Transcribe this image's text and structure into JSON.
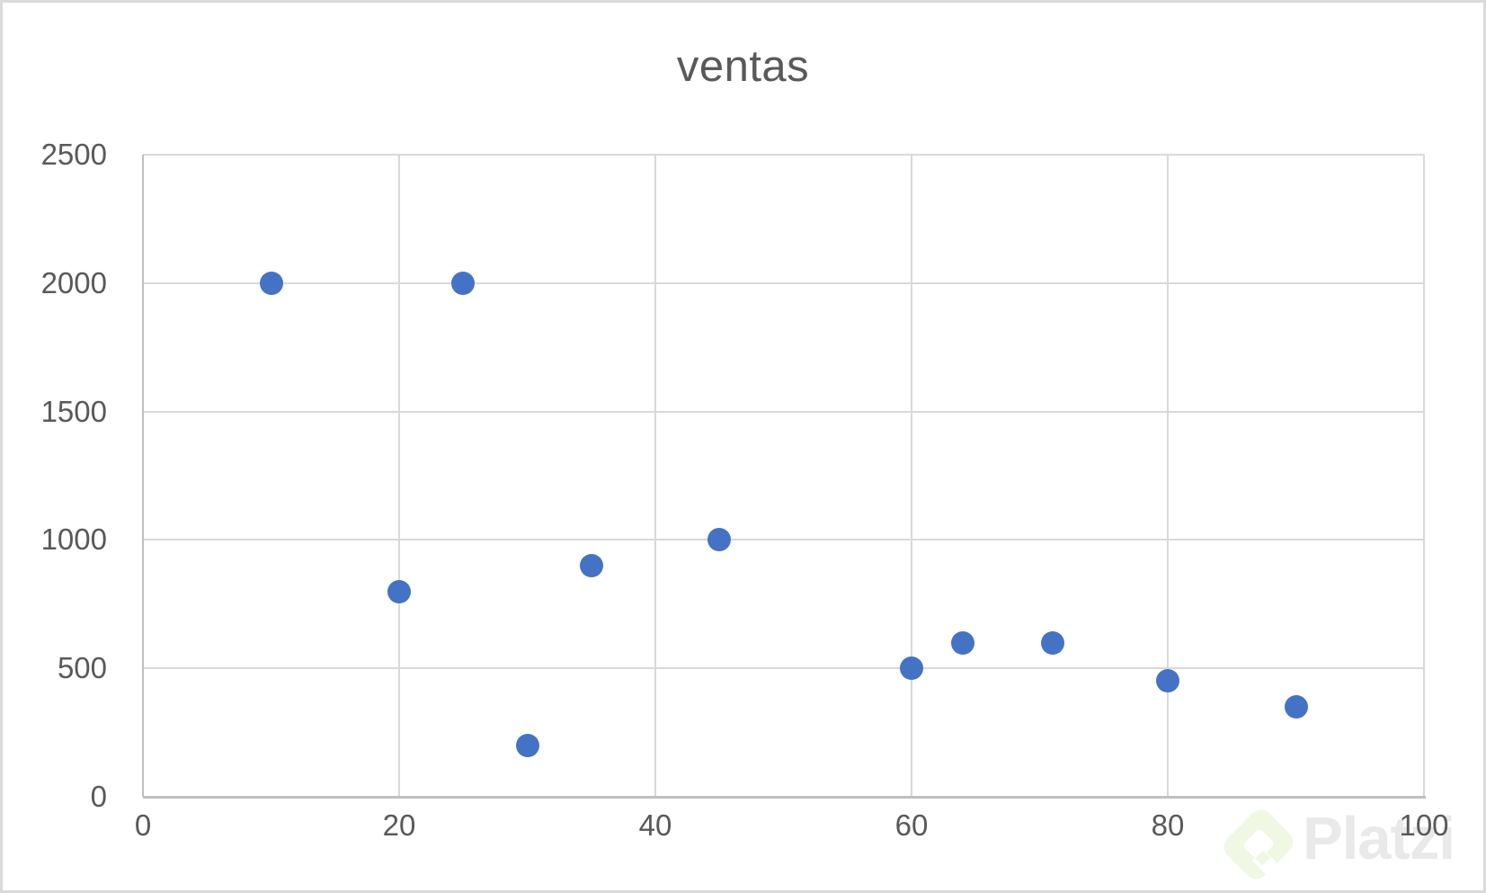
{
  "chart_data": {
    "type": "scatter",
    "title": "ventas",
    "series": [
      {
        "name": "ventas",
        "points": [
          {
            "x": 10,
            "y": 2000
          },
          {
            "x": 20,
            "y": 800
          },
          {
            "x": 25,
            "y": 2000
          },
          {
            "x": 30,
            "y": 200
          },
          {
            "x": 35,
            "y": 900
          },
          {
            "x": 45,
            "y": 1000
          },
          {
            "x": 60,
            "y": 500
          },
          {
            "x": 64,
            "y": 600
          },
          {
            "x": 71,
            "y": 600
          },
          {
            "x": 80,
            "y": 450
          },
          {
            "x": 90,
            "y": 350
          }
        ]
      }
    ],
    "xlim": [
      0,
      100
    ],
    "ylim": [
      0,
      2500
    ],
    "x_ticks": [
      0,
      20,
      40,
      60,
      80,
      100
    ],
    "y_ticks": [
      0,
      500,
      1000,
      1500,
      2000,
      2500
    ],
    "grid": true,
    "legend": "none",
    "marker_color": "#4472C4",
    "title_color": "#595959",
    "tick_label_color": "#595959",
    "gridline_color": "#D9D9D9",
    "axis_line_color": "#BFBFBF"
  },
  "watermark": {
    "brand": "Platzi",
    "logo_icon": "platzi-diamond-logo",
    "logo_color": "#F0F7E2",
    "text_color": "#E9E9E9"
  }
}
